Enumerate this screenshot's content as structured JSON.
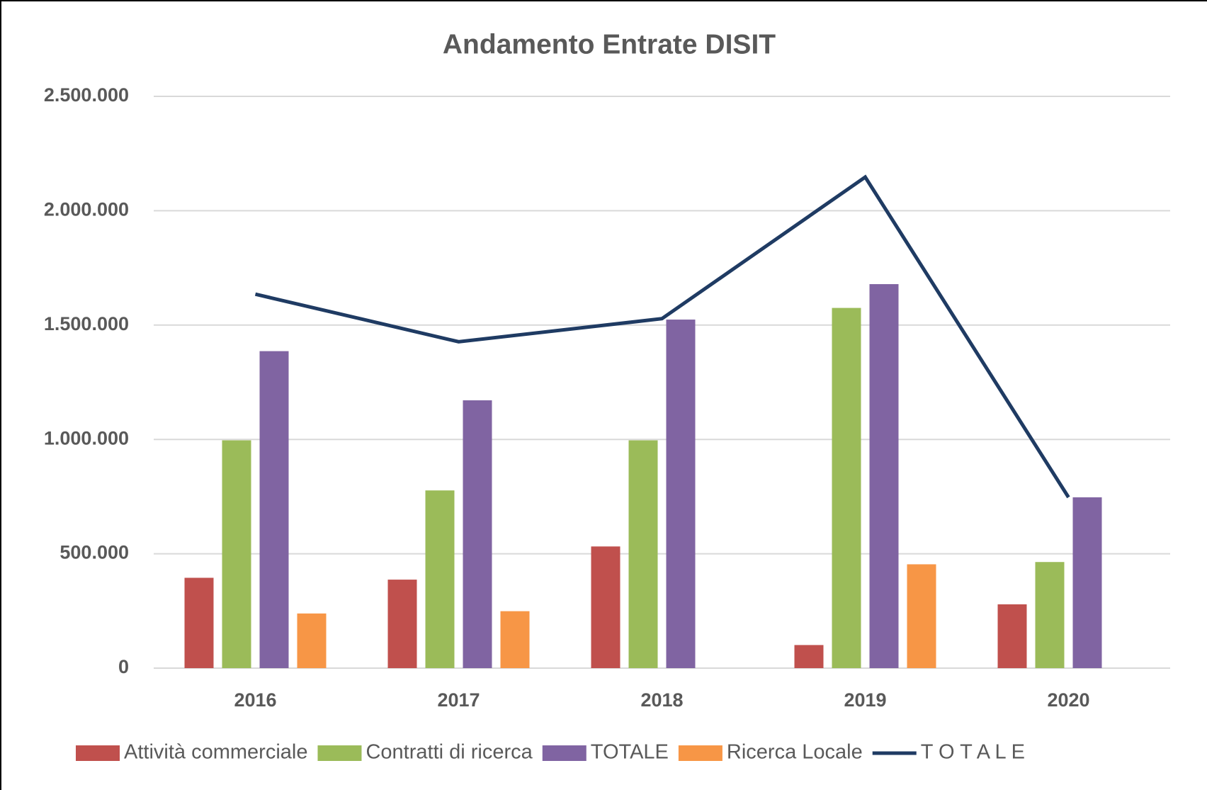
{
  "chart_data": {
    "type": "bar",
    "title": "Andamento Entrate DISIT",
    "categories": [
      "2016",
      "2017",
      "2018",
      "2019",
      "2020"
    ],
    "series": [
      {
        "name": "Attività commerciale",
        "color": "#c0504d",
        "values": [
          395000,
          387000,
          532000,
          101000,
          279000
        ]
      },
      {
        "name": "Contratti di ricerca",
        "color": "#9bbb59",
        "values": [
          996000,
          777000,
          996000,
          1575000,
          464000
        ]
      },
      {
        "name": "TOTALE",
        "color": "#8064a2",
        "values": [
          1386000,
          1171000,
          1524000,
          1679000,
          747000
        ]
      },
      {
        "name": "Ricerca Locale",
        "color": "#f79646",
        "values": [
          239000,
          249000,
          null,
          454000,
          null
        ]
      },
      {
        "name": "T O T A L E",
        "color": "#1f3b63",
        "type": "line",
        "values": [
          1635000,
          1427000,
          1528000,
          2147000,
          747000
        ]
      }
    ],
    "ylim": [
      0,
      2500000
    ],
    "yticks": [
      0,
      {
        "value": 500000,
        "label": "500.000"
      },
      {
        "value": 1000000,
        "label": "1.000.000"
      },
      {
        "value": 1500000,
        "label": "1.500.000"
      },
      {
        "value": 2000000,
        "label": "2.000.000"
      },
      {
        "value": 2500000,
        "label": "2.500.000"
      }
    ],
    "grid": true,
    "legend": "bottom"
  }
}
